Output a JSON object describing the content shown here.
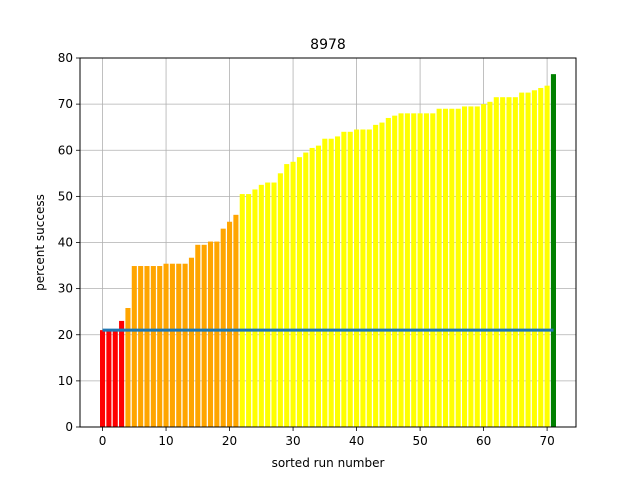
{
  "chart_data": {
    "type": "bar",
    "title": "8978",
    "xlabel": "sorted run number",
    "ylabel": "percent success",
    "xlim": [
      -3.55,
      74.55
    ],
    "ylim": [
      0,
      80
    ],
    "xticks": [
      0,
      10,
      20,
      30,
      40,
      50,
      60,
      70
    ],
    "yticks": [
      0,
      10,
      20,
      30,
      40,
      50,
      60,
      70,
      80
    ],
    "grid": true,
    "legend": "none",
    "x": [
      0,
      1,
      2,
      3,
      4,
      5,
      6,
      7,
      8,
      9,
      10,
      11,
      12,
      13,
      14,
      15,
      16,
      17,
      18,
      19,
      20,
      21,
      22,
      23,
      24,
      25,
      26,
      27,
      28,
      29,
      30,
      31,
      32,
      33,
      34,
      35,
      36,
      37,
      38,
      39,
      40,
      41,
      42,
      43,
      44,
      45,
      46,
      47,
      48,
      49,
      50,
      51,
      52,
      53,
      54,
      55,
      56,
      57,
      58,
      59,
      60,
      61,
      62,
      63,
      64,
      65,
      66,
      67,
      68,
      69,
      70,
      71
    ],
    "values": [
      21.0,
      21.0,
      21.0,
      23.0,
      25.8,
      34.9,
      34.9,
      34.9,
      34.9,
      34.9,
      35.4,
      35.4,
      35.4,
      35.4,
      36.7,
      39.5,
      39.5,
      40.2,
      40.2,
      43.0,
      44.5,
      46.0,
      50.5,
      50.5,
      51.5,
      52.5,
      53.0,
      53.0,
      55.0,
      57.0,
      57.5,
      58.5,
      59.5,
      60.5,
      61.0,
      62.5,
      62.5,
      63.0,
      64.0,
      64.0,
      64.5,
      64.5,
      64.5,
      65.5,
      66.0,
      67.0,
      67.5,
      68.0,
      68.0,
      68.0,
      68.0,
      68.0,
      68.0,
      69.0,
      69.0,
      69.0,
      69.0,
      69.5,
      69.5,
      69.5,
      70.0,
      70.5,
      71.5,
      71.5,
      71.5,
      71.5,
      72.5,
      72.5,
      73.0,
      73.5,
      74.0,
      76.5
    ],
    "bar_colors": [
      "#ff0000",
      "#ff0000",
      "#ff0000",
      "#ff0000",
      "#ffa500",
      "#ffa500",
      "#ffa500",
      "#ffa500",
      "#ffa500",
      "#ffa500",
      "#ffa500",
      "#ffa500",
      "#ffa500",
      "#ffa500",
      "#ffa500",
      "#ffa500",
      "#ffa500",
      "#ffa500",
      "#ffa500",
      "#ffa500",
      "#ffa500",
      "#ffa500",
      "#ffff00",
      "#ffff00",
      "#ffff00",
      "#ffff00",
      "#ffff00",
      "#ffff00",
      "#ffff00",
      "#ffff00",
      "#ffff00",
      "#ffff00",
      "#ffff00",
      "#ffff00",
      "#ffff00",
      "#ffff00",
      "#ffff00",
      "#ffff00",
      "#ffff00",
      "#ffff00",
      "#ffff00",
      "#ffff00",
      "#ffff00",
      "#ffff00",
      "#ffff00",
      "#ffff00",
      "#ffff00",
      "#ffff00",
      "#ffff00",
      "#ffff00",
      "#ffff00",
      "#ffff00",
      "#ffff00",
      "#ffff00",
      "#ffff00",
      "#ffff00",
      "#ffff00",
      "#ffff00",
      "#ffff00",
      "#ffff00",
      "#ffff00",
      "#ffff00",
      "#ffff00",
      "#ffff00",
      "#ffff00",
      "#ffff00",
      "#ffff00",
      "#ffff00",
      "#ffff00",
      "#ffff00",
      "#ffff00",
      "#008000"
    ],
    "reference_line": {
      "y": 21.0,
      "x_range": [
        0,
        71
      ],
      "color": "#1f77b4"
    }
  }
}
